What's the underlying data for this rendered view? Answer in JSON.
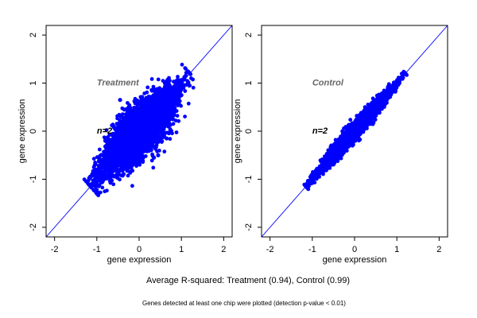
{
  "caption": "Average R-squared: Treatment (0.94), Control (0.99)",
  "footnote": "Genes detected at least one chip were plotted (detection p-value < 0.01)",
  "colors": {
    "points": "#0000ff",
    "line": "#0000ff",
    "frame": "#000000",
    "title": "#666666"
  },
  "chart_data": [
    {
      "type": "scatter",
      "title": "Treatment",
      "annotation": "n=2",
      "xlabel": "gene expression",
      "ylabel": "gene expression",
      "xlim": [
        -2.2,
        2.2
      ],
      "ylim": [
        -2.2,
        2.2
      ],
      "xticks": [
        -2,
        -1,
        0,
        1,
        2
      ],
      "yticks": [
        -2,
        -1,
        0,
        1,
        2
      ],
      "reference_line": {
        "slope": 1,
        "intercept": 0
      },
      "r_squared": 0.94,
      "points": [
        [
          -1.1,
          -1.1
        ],
        [
          -1.0,
          -0.95
        ],
        [
          -0.9,
          -0.85
        ],
        [
          -0.8,
          -0.6
        ],
        [
          -0.7,
          -0.9
        ],
        [
          -0.6,
          -0.5
        ],
        [
          -0.5,
          -0.2
        ],
        [
          -0.4,
          -0.7
        ],
        [
          -0.3,
          0.1
        ],
        [
          -0.2,
          -0.45
        ],
        [
          -0.1,
          0.3
        ],
        [
          0.0,
          -0.3
        ],
        [
          0.1,
          0.5
        ],
        [
          0.2,
          -0.1
        ],
        [
          0.3,
          0.7
        ],
        [
          0.4,
          0.05
        ],
        [
          0.5,
          0.8
        ],
        [
          0.6,
          0.3
        ],
        [
          0.7,
          0.95
        ],
        [
          0.8,
          0.5
        ],
        [
          0.9,
          1.05
        ],
        [
          1.0,
          0.75
        ],
        [
          1.1,
          1.15
        ],
        [
          1.2,
          1.2
        ],
        [
          -0.35,
          0.45
        ],
        [
          0.45,
          -0.5
        ],
        [
          -0.6,
          0.1
        ],
        [
          0.65,
          -0.15
        ],
        [
          -0.45,
          0.65
        ],
        [
          0.35,
          -0.55
        ],
        [
          -0.8,
          -0.2
        ],
        [
          0.8,
          0.25
        ]
      ],
      "n_points": 4200,
      "spread": 0.22
    },
    {
      "type": "scatter",
      "title": "Control",
      "annotation": "n=2",
      "xlabel": "gene expression",
      "ylabel": "gene expression",
      "xlim": [
        -2.2,
        2.2
      ],
      "ylim": [
        -2.2,
        2.2
      ],
      "xticks": [
        -2,
        -1,
        0,
        1,
        2
      ],
      "yticks": [
        -2,
        -1,
        0,
        1,
        2
      ],
      "reference_line": {
        "slope": 1,
        "intercept": 0
      },
      "r_squared": 0.99,
      "points": [
        [
          -1.1,
          -1.1
        ],
        [
          -1.0,
          -1.0
        ],
        [
          -0.9,
          -0.88
        ],
        [
          -0.8,
          -0.82
        ],
        [
          -0.7,
          -0.65
        ],
        [
          -0.6,
          -0.62
        ],
        [
          -0.5,
          -0.48
        ],
        [
          -0.4,
          -0.42
        ],
        [
          -0.3,
          -0.27
        ],
        [
          -0.2,
          -0.22
        ],
        [
          -0.1,
          -0.08
        ],
        [
          0.0,
          0.02
        ],
        [
          0.1,
          0.12
        ],
        [
          0.2,
          0.18
        ],
        [
          0.3,
          0.32
        ],
        [
          0.4,
          0.38
        ],
        [
          0.5,
          0.52
        ],
        [
          0.6,
          0.58
        ],
        [
          0.7,
          0.72
        ],
        [
          0.8,
          0.78
        ],
        [
          0.9,
          0.92
        ],
        [
          1.0,
          0.98
        ],
        [
          1.1,
          1.1
        ],
        [
          1.2,
          1.2
        ]
      ],
      "n_points": 4200,
      "spread": 0.07
    }
  ]
}
